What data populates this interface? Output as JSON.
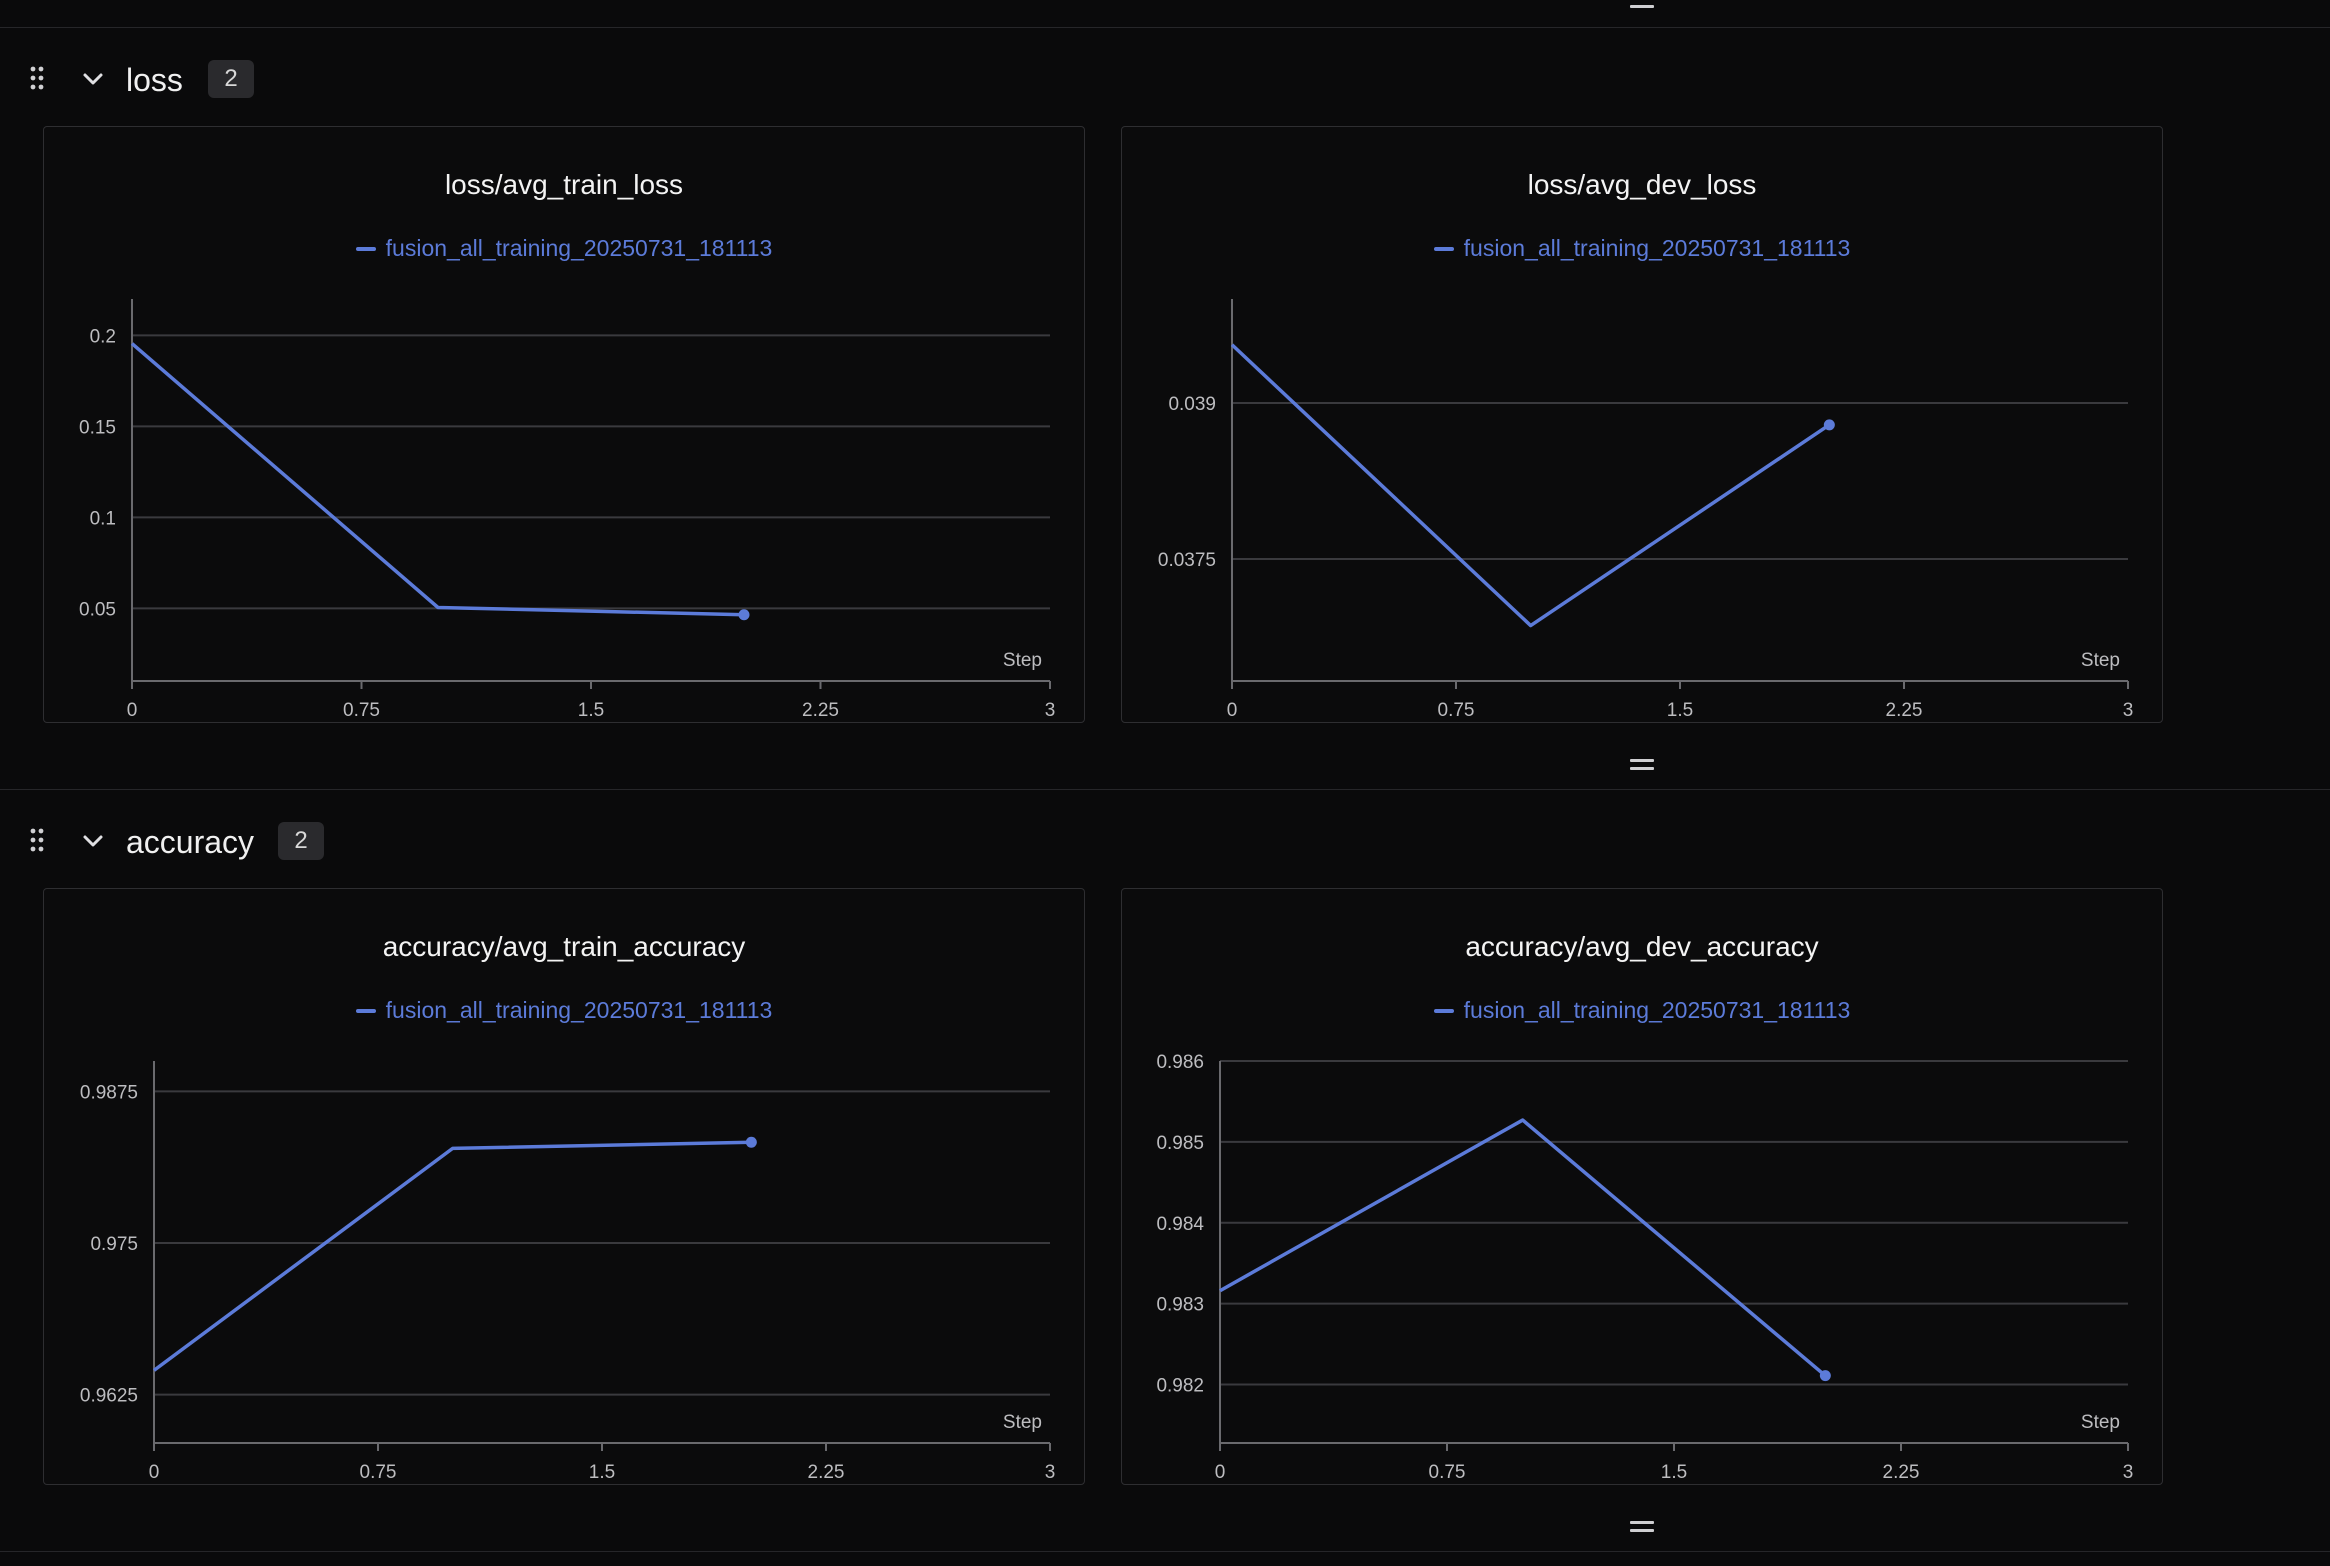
{
  "sections": [
    {
      "title": "loss",
      "count": "2",
      "charts": [
        {
          "chart_data": {
            "type": "line",
            "title": "loss/avg_train_loss",
            "xlabel": "Step",
            "series": [
              {
                "name": "fusion_all_training_20250731_181113",
                "x": [
                  0,
                  1,
                  2
                ],
                "y": [
                  0.1955,
                  0.0505,
                  0.0465
                ]
              }
            ],
            "xlim": [
              0,
              3
            ],
            "ylim": [
              0.02,
              0.22
            ],
            "xticks": [
              "0",
              "0.75",
              "1.5",
              "2.25",
              "3"
            ],
            "yticks": [
              {
                "value": 0.2,
                "label": "0.2"
              },
              {
                "value": 0.15,
                "label": "0.15"
              },
              {
                "value": 0.1,
                "label": "0.1"
              },
              {
                "value": 0.05,
                "label": "0.05"
              }
            ],
            "color": "#5c7bd9",
            "grid": true
          }
        },
        {
          "chart_data": {
            "type": "line",
            "title": "loss/avg_dev_loss",
            "xlabel": "Step",
            "series": [
              {
                "name": "fusion_all_training_20250731_181113",
                "x": [
                  0,
                  1,
                  2
                ],
                "y": [
                  0.03956,
                  0.03686,
                  0.03879
                ]
              }
            ],
            "xlim": [
              0,
              3
            ],
            "ylim": [
              0.0365,
              0.04
            ],
            "xticks": [
              "0",
              "0.75",
              "1.5",
              "2.25",
              "3"
            ],
            "yticks": [
              {
                "value": 0.039,
                "label": "0.039"
              },
              {
                "value": 0.0375,
                "label": "0.0375"
              }
            ],
            "color": "#5c7bd9",
            "grid": true
          }
        }
      ]
    },
    {
      "title": "accuracy",
      "count": "2",
      "charts": [
        {
          "chart_data": {
            "type": "line",
            "title": "accuracy/avg_train_accuracy",
            "xlabel": "Step",
            "series": [
              {
                "name": "fusion_all_training_20250731_181113",
                "x": [
                  0,
                  1,
                  2
                ],
                "y": [
                  0.9645,
                  0.9828,
                  0.9833
                ]
              }
            ],
            "xlim": [
              0,
              3
            ],
            "ylim": [
              0.96,
              0.99
            ],
            "xticks": [
              "0",
              "0.75",
              "1.5",
              "2.25",
              "3"
            ],
            "yticks": [
              {
                "value": 0.9875,
                "label": "0.9875"
              },
              {
                "value": 0.975,
                "label": "0.975"
              },
              {
                "value": 0.9625,
                "label": "0.9625"
              }
            ],
            "color": "#5c7bd9",
            "grid": true
          }
        },
        {
          "chart_data": {
            "type": "line",
            "title": "accuracy/avg_dev_accuracy",
            "xlabel": "Step",
            "series": [
              {
                "name": "fusion_all_training_20250731_181113",
                "x": [
                  0,
                  1,
                  2
                ],
                "y": [
                  0.98316,
                  0.98527,
                  0.98211
                ]
              }
            ],
            "xlim": [
              0,
              3
            ],
            "ylim": [
              0.9815,
              0.986
            ],
            "xticks": [
              "0",
              "0.75",
              "1.5",
              "2.25",
              "3"
            ],
            "yticks": [
              {
                "value": 0.986,
                "label": "0.986"
              },
              {
                "value": 0.985,
                "label": "0.985"
              },
              {
                "value": 0.984,
                "label": "0.984"
              },
              {
                "value": 0.983,
                "label": "0.983"
              },
              {
                "value": 0.982,
                "label": "0.982"
              }
            ],
            "color": "#5c7bd9",
            "grid": true
          }
        }
      ]
    }
  ]
}
